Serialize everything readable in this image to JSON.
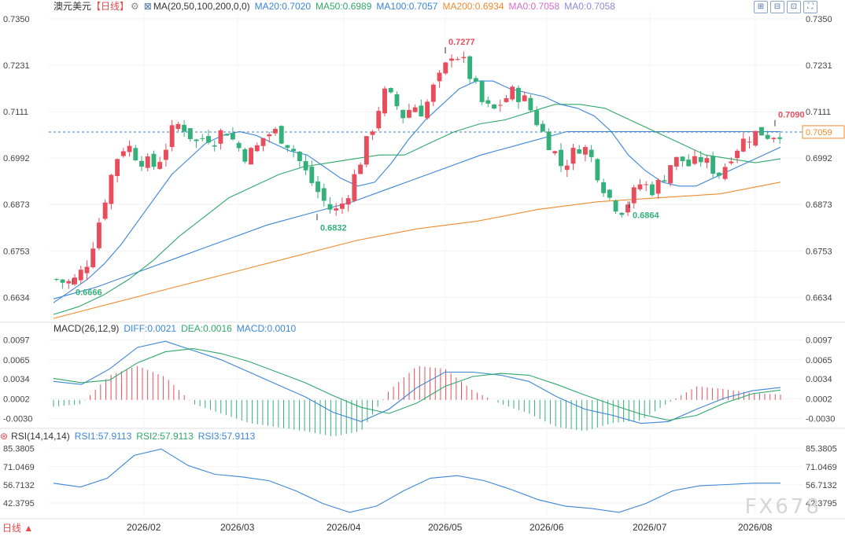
{
  "header": {
    "symbol": "澳元美元",
    "period_tag": "【日线】",
    "ma_label": "MA(20,50,100,200,0,0)",
    "ma_values": [
      {
        "text": "MA20:0.7020",
        "color": "#3b86d6"
      },
      {
        "text": "MA50:0.6989",
        "color": "#2ea86a"
      },
      {
        "text": "MA100:0.7057",
        "color": "#3b86d6"
      },
      {
        "text": "MA200:0.6934",
        "color": "#f08a2e"
      },
      {
        "text": "MA0:0.7058",
        "color": "#d96bd0"
      },
      {
        "text": "MA0:0.7058",
        "color": "#8a8ad6"
      }
    ]
  },
  "macd_header": {
    "label": "MACD(26,12,9)",
    "values": [
      {
        "text": "DIFF:0.0021",
        "color": "#3b86d6"
      },
      {
        "text": "DEA:0.0016",
        "color": "#2ea86a"
      },
      {
        "text": "MACD:0.0010",
        "color": "#3b86d6"
      }
    ]
  },
  "rsi_header": {
    "label": "RSI(14,14,14)",
    "values": [
      {
        "text": "RSI1:57.9113",
        "color": "#3b86d6"
      },
      {
        "text": "RSI2:57.9113",
        "color": "#2ea86a"
      },
      {
        "text": "RSI3:57.9113",
        "color": "#3b86d6"
      }
    ]
  },
  "toolbar_icons": [
    "zoom-in-icon",
    "zoom-out-icon",
    "indicator-icon",
    "fullscreen-icon"
  ],
  "period_button": "日线 ▲",
  "watermark": "FX678",
  "colors": {
    "up": "#e84d5b",
    "down": "#34b07a",
    "ma20": "#3b86d6",
    "ma50": "#2ea86a",
    "ma100": "#3b86d6",
    "ma200": "#f08a2e",
    "price_line": "#3f7fb5"
  },
  "chart_data": {
    "type": "candlestick",
    "x_axis_labels": [
      "2026/02",
      "2026/03",
      "2026/04",
      "2026/05",
      "2026/06",
      "2026/07",
      "2026/08"
    ],
    "price_axis": {
      "ticks": [
        "0.7350",
        "0.7231",
        "0.7111",
        "0.6992",
        "0.6873",
        "0.6753",
        "0.6634"
      ],
      "range": [
        0.657,
        0.737
      ]
    },
    "current_price": "0.7059",
    "annotations": [
      {
        "text": "0.7277",
        "kind": "high"
      },
      {
        "text": "0.7090",
        "kind": "high"
      },
      {
        "text": "0.6666",
        "kind": "low"
      },
      {
        "text": "0.6832",
        "kind": "low"
      },
      {
        "text": "0.6864",
        "kind": "low"
      }
    ],
    "close_path": [
      0.668,
      0.667,
      0.668,
      0.672,
      0.68,
      0.69,
      0.699,
      0.703,
      0.7,
      0.698,
      0.697,
      0.702,
      0.708,
      0.707,
      0.703,
      0.705,
      0.704,
      0.707,
      0.703,
      0.7,
      0.701,
      0.705,
      0.706,
      0.704,
      0.701,
      0.696,
      0.692,
      0.688,
      0.685,
      0.688,
      0.694,
      0.701,
      0.708,
      0.716,
      0.714,
      0.71,
      0.713,
      0.711,
      0.717,
      0.721,
      0.727,
      0.724,
      0.719,
      0.713,
      0.711,
      0.714,
      0.716,
      0.715,
      0.711,
      0.706,
      0.702,
      0.697,
      0.7,
      0.703,
      0.699,
      0.693,
      0.688,
      0.686,
      0.689,
      0.693,
      0.691,
      0.693,
      0.698,
      0.699,
      0.697,
      0.699,
      0.697,
      0.695,
      0.7,
      0.703,
      0.705,
      0.706,
      0.705,
      0.706
    ],
    "ma20": [
      0.662,
      0.665,
      0.668,
      0.672,
      0.677,
      0.683,
      0.689,
      0.695,
      0.699,
      0.703,
      0.705,
      0.706,
      0.705,
      0.703,
      0.701,
      0.7,
      0.697,
      0.694,
      0.692,
      0.693,
      0.698,
      0.704,
      0.709,
      0.713,
      0.717,
      0.719,
      0.719,
      0.717,
      0.716,
      0.715,
      0.713,
      0.712,
      0.71,
      0.706,
      0.7,
      0.696,
      0.693,
      0.692,
      0.692,
      0.694,
      0.696,
      0.698,
      0.7,
      0.702
    ],
    "ma50": [
      0.659,
      0.661,
      0.664,
      0.668,
      0.673,
      0.679,
      0.684,
      0.689,
      0.692,
      0.695,
      0.697,
      0.698,
      0.699,
      0.7,
      0.7,
      0.703,
      0.706,
      0.708,
      0.709,
      0.711,
      0.713,
      0.713,
      0.712,
      0.709,
      0.706,
      0.703,
      0.7,
      0.699,
      0.698,
      0.699
    ],
    "ma100": [
      0.663,
      0.666,
      0.67,
      0.674,
      0.678,
      0.682,
      0.685,
      0.688,
      0.692,
      0.696,
      0.7,
      0.703,
      0.706,
      0.706,
      0.706,
      0.706,
      0.706,
      0.706
    ],
    "ma200": [
      0.658,
      0.662,
      0.666,
      0.67,
      0.674,
      0.678,
      0.681,
      0.683,
      0.686,
      0.688,
      0.689,
      0.69,
      0.693
    ],
    "macd_axis": {
      "ticks": [
        "0.0097",
        "0.0065",
        "0.0034",
        "0.0002",
        "-0.0030"
      ],
      "range": [
        -0.0046,
        0.0108
      ]
    },
    "diff": [
      0.003,
      0.0025,
      0.005,
      0.0085,
      0.0095,
      0.008,
      0.0065,
      0.0045,
      0.0025,
      0.0005,
      -0.002,
      -0.0035,
      -0.0015,
      0.002,
      0.0045,
      0.0045,
      0.004,
      0.003,
      0.0005,
      -0.0015,
      -0.0025,
      -0.0038,
      -0.0035,
      -0.0015,
      0.0003,
      0.0015,
      0.002
    ],
    "dea": [
      0.0035,
      0.0028,
      0.0032,
      0.006,
      0.0078,
      0.0083,
      0.0075,
      0.0062,
      0.0045,
      0.0028,
      0.0007,
      -0.0012,
      -0.0022,
      -0.0005,
      0.0022,
      0.0038,
      0.0043,
      0.004,
      0.0025,
      0.0008,
      -0.0008,
      -0.0023,
      -0.0033,
      -0.0025,
      -0.0005,
      0.001,
      0.0016
    ],
    "rsi_axis": {
      "ticks": [
        "85.3805",
        "71.0469",
        "56.7132",
        "42.3795"
      ],
      "range": [
        30,
        92
      ]
    },
    "rsi": [
      58,
      55,
      62,
      80,
      85,
      72,
      65,
      63,
      60,
      52,
      42,
      35,
      40,
      52,
      62,
      64,
      60,
      53,
      45,
      40,
      38,
      35,
      42,
      52,
      56,
      57,
      58,
      58
    ]
  }
}
